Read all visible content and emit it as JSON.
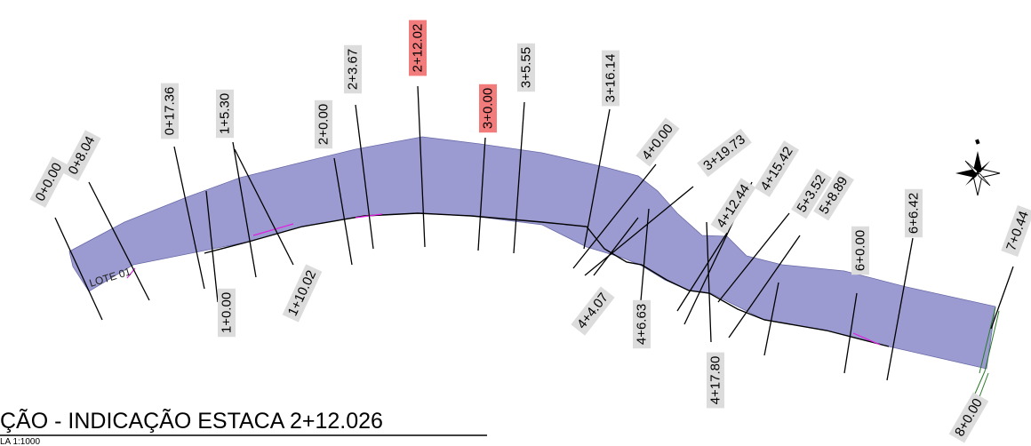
{
  "colors": {
    "road_fill": "#9b9bd1",
    "label_bg": "#dcdcdc",
    "label_highlight_bg": "#f27b7b",
    "edge_line": "#000000",
    "magenta_line": "#e020e0"
  },
  "lot_label": "LOTE 01",
  "title": "ÇÃO - INDICAÇÃO ESTACA 2+12.026",
  "scale_note": "LA 1:1000",
  "north_arrow_icon": "north-arrow-icon",
  "stations": [
    {
      "label": "0+0.00",
      "highlight": false
    },
    {
      "label": "0+8.04",
      "highlight": false
    },
    {
      "label": "0+17.36",
      "highlight": false
    },
    {
      "label": "1+0.00",
      "highlight": false
    },
    {
      "label": "1+5.30",
      "highlight": false
    },
    {
      "label": "1+10.02",
      "highlight": false
    },
    {
      "label": "2+0.00",
      "highlight": false
    },
    {
      "label": "2+3.67",
      "highlight": false
    },
    {
      "label": "2+12.02",
      "highlight": true
    },
    {
      "label": "3+0.00",
      "highlight": true
    },
    {
      "label": "3+5.55",
      "highlight": false
    },
    {
      "label": "3+16.14",
      "highlight": false
    },
    {
      "label": "3+19.73",
      "highlight": false
    },
    {
      "label": "4+0.00",
      "highlight": false
    },
    {
      "label": "4+4.07",
      "highlight": false
    },
    {
      "label": "4+6.63",
      "highlight": false
    },
    {
      "label": "4+12.44",
      "highlight": false
    },
    {
      "label": "4+15.42",
      "highlight": false
    },
    {
      "label": "4+17.80",
      "highlight": false
    },
    {
      "label": "5+3.52",
      "highlight": false
    },
    {
      "label": "5+8.89",
      "highlight": false
    },
    {
      "label": "6+0.00",
      "highlight": false
    },
    {
      "label": "6+6.42",
      "highlight": false
    },
    {
      "label": "7+0.44",
      "highlight": false
    },
    {
      "label": "8+0.00",
      "highlight": false
    }
  ]
}
